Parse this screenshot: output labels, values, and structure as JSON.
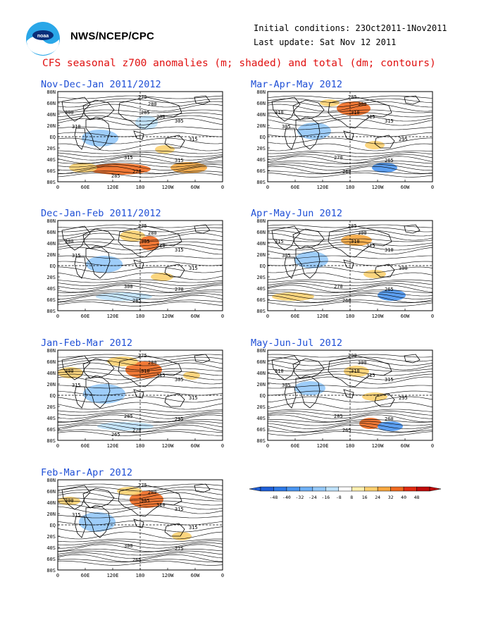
{
  "header": {
    "agency": "NWS/NCEP/CPC",
    "initial_conditions": "Initial conditions: 23Oct2011-1Nov2011",
    "last_update": "Last update: Sat Nov 12 2011",
    "title": "CFS seasonal z700 anomalies (m; shaded) and total (dm; contours)"
  },
  "axes": {
    "lat_labels": [
      "80N",
      "60N",
      "40N",
      "20N",
      "EQ",
      "20S",
      "40S",
      "60S",
      "80S"
    ],
    "lon_labels": [
      "0",
      "60E",
      "120E",
      "180",
      "120W",
      "60W",
      "0"
    ]
  },
  "panels": [
    {
      "title": "Nov-Dec-Jan 2011/2012",
      "contour_labels": [
        "275",
        "280",
        "285",
        "290",
        "300",
        "305",
        "310",
        "315",
        "315",
        "315",
        "270",
        "285"
      ]
    },
    {
      "title": "Dec-Jan-Feb 2011/2012",
      "contour_labels": [
        "275",
        "280",
        "305",
        "310",
        "300",
        "315",
        "315",
        "315",
        "300",
        "270",
        "285"
      ]
    },
    {
      "title": "Jan-Feb-Mar 2012",
      "contour_labels": [
        "275",
        "280",
        "310",
        "315",
        "300",
        "305",
        "315",
        "315",
        "285",
        "295",
        "270",
        "265"
      ]
    },
    {
      "title": "Feb-Mar-Apr 2012",
      "contour_labels": [
        "275",
        "280",
        "305",
        "310",
        "300",
        "315",
        "315",
        "315",
        "300",
        "275",
        "265"
      ]
    },
    {
      "title": "Mar-Apr-May 2012",
      "contour_labels": [
        "285",
        "300",
        "310",
        "315",
        "310",
        "315",
        "305",
        "295",
        "270",
        "265",
        "260"
      ]
    },
    {
      "title": "Apr-May-Jun 2012",
      "contour_labels": [
        "285",
        "300",
        "310",
        "315",
        "315",
        "310",
        "305",
        "300",
        "270",
        "265",
        "260"
      ]
    },
    {
      "title": "May-Jun-Jul 2012",
      "contour_labels": [
        "290",
        "300",
        "310",
        "315",
        "310",
        "315",
        "305",
        "295",
        "285",
        "260",
        "265"
      ]
    }
  ],
  "colorbar": {
    "ticks": [
      "-48",
      "-40",
      "-32",
      "-24",
      "-16",
      "-8",
      "8",
      "16",
      "24",
      "32",
      "40",
      "48"
    ],
    "colors": [
      "#1f5fd8",
      "#2d79e6",
      "#4a95f0",
      "#6fb0f5",
      "#94c8f8",
      "#bfe2fb",
      "#ffffff",
      "#fff0b0",
      "#fbd070",
      "#f7a840",
      "#ef6a20",
      "#e02a10",
      "#c00a0a"
    ]
  },
  "colors": {
    "title": "#e01010",
    "panel_title": "#1f4fd6",
    "land": "#000000",
    "contour": "#000000"
  }
}
